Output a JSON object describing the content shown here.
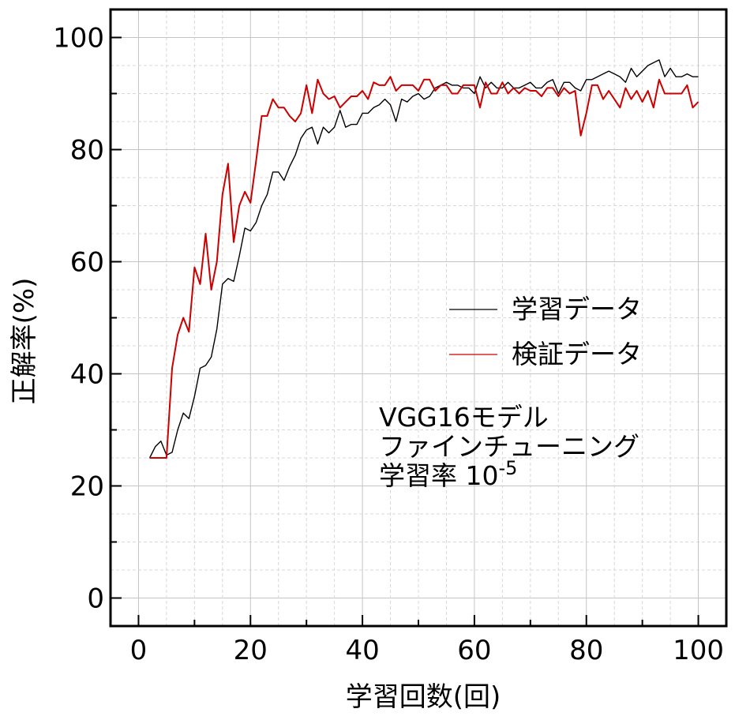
{
  "chart_data": {
    "type": "line",
    "xlabel": "学習回数(回)",
    "ylabel": "正解率(%)",
    "xlim": [
      -5,
      105
    ],
    "ylim": [
      -5,
      105
    ],
    "x_ticks": [
      0,
      20,
      40,
      60,
      80,
      100
    ],
    "y_ticks": [
      0,
      20,
      40,
      60,
      80,
      100
    ],
    "grid": true,
    "legend_position": "center-right",
    "annotation": {
      "line1": "VGG16モデル",
      "line2": "ファインチューニング",
      "line3": "学習率 10",
      "line3_superscript": "-5"
    },
    "series": [
      {
        "name": "学習データ",
        "color": "#000000",
        "x": [
          2,
          3,
          4,
          5,
          6,
          7,
          8,
          9,
          10,
          11,
          12,
          13,
          14,
          15,
          16,
          17,
          18,
          19,
          20,
          21,
          22,
          23,
          24,
          25,
          26,
          27,
          28,
          29,
          30,
          31,
          32,
          33,
          34,
          35,
          36,
          37,
          38,
          39,
          40,
          41,
          42,
          43,
          44,
          45,
          46,
          47,
          48,
          49,
          50,
          51,
          52,
          53,
          54,
          55,
          56,
          57,
          58,
          59,
          60,
          61,
          62,
          63,
          64,
          65,
          66,
          67,
          68,
          69,
          70,
          71,
          72,
          73,
          74,
          75,
          76,
          77,
          78,
          79,
          80,
          81,
          82,
          83,
          84,
          85,
          86,
          87,
          88,
          89,
          90,
          91,
          92,
          93,
          94,
          95,
          96,
          97,
          98,
          99,
          100
        ],
        "values": [
          25,
          27,
          28,
          25.5,
          26,
          30,
          33,
          32,
          36,
          41,
          41.5,
          43,
          48,
          56,
          57,
          56.5,
          61,
          66,
          65.5,
          67,
          70,
          72,
          76,
          76,
          74.5,
          77,
          79,
          82,
          83.5,
          84,
          81,
          84,
          83,
          84,
          87,
          84,
          84.5,
          84.5,
          86.5,
          86.5,
          87.5,
          88,
          89,
          88,
          85,
          89,
          88.5,
          89.5,
          90,
          89,
          89.5,
          91,
          91.5,
          92,
          91.5,
          91.5,
          91,
          91,
          90,
          93,
          91,
          92,
          91,
          91,
          92,
          91,
          91,
          91.5,
          92,
          91,
          91,
          92,
          92.5,
          90,
          92,
          92,
          91,
          90.5,
          92.5,
          92.5,
          93,
          93.5,
          94,
          93.5,
          93,
          92,
          94.5,
          93,
          94,
          95,
          95.5,
          96,
          93,
          94.5,
          93,
          93,
          93.5,
          93,
          93
        ]
      },
      {
        "name": "検証データ",
        "color": "#cc0000",
        "x": [
          2,
          3,
          4,
          5,
          6,
          7,
          8,
          9,
          10,
          11,
          12,
          13,
          14,
          15,
          16,
          17,
          18,
          19,
          20,
          21,
          22,
          23,
          24,
          25,
          26,
          27,
          28,
          29,
          30,
          31,
          32,
          33,
          34,
          35,
          36,
          37,
          38,
          39,
          40,
          41,
          42,
          43,
          44,
          45,
          46,
          47,
          48,
          49,
          50,
          51,
          52,
          53,
          54,
          55,
          56,
          57,
          58,
          59,
          60,
          61,
          62,
          63,
          64,
          65,
          66,
          67,
          68,
          69,
          70,
          71,
          72,
          73,
          74,
          75,
          76,
          77,
          78,
          79,
          80,
          81,
          82,
          83,
          84,
          85,
          86,
          87,
          88,
          89,
          90,
          91,
          92,
          93,
          94,
          95,
          96,
          97,
          98,
          99,
          100
        ],
        "values": [
          25,
          25,
          25,
          25,
          41,
          47,
          50,
          47.5,
          59,
          56,
          65,
          55,
          60,
          72,
          77.5,
          63.5,
          70,
          72.5,
          70.5,
          78,
          86,
          86,
          89,
          87.5,
          87.5,
          86,
          85,
          86.5,
          91.5,
          86.5,
          92.5,
          90,
          89,
          89.5,
          87.5,
          88.5,
          89.5,
          89.5,
          90.5,
          89,
          92,
          91.5,
          91.5,
          93,
          90.5,
          91.5,
          91.5,
          91.5,
          90.5,
          92.5,
          92.5,
          90.5,
          91.5,
          91.5,
          90,
          90,
          91.5,
          91.5,
          91.5,
          87.5,
          92,
          90,
          90,
          92,
          90,
          91,
          90,
          91,
          90.5,
          90.5,
          89.5,
          91,
          91,
          89.5,
          91,
          90,
          90.5,
          82.5,
          86.5,
          91.5,
          91.5,
          89,
          90.5,
          89,
          87.5,
          91,
          89,
          90.5,
          88.5,
          90.5,
          87.5,
          92.5,
          90,
          90,
          90,
          90,
          91.5,
          87.5,
          88.5
        ]
      }
    ]
  }
}
